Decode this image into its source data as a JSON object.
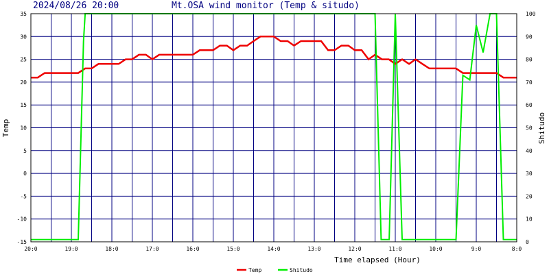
{
  "header": {
    "timestamp": "2024/08/26 20:00",
    "title": "Mt.OSA wind monitor (Temp & situdo)"
  },
  "chart_data": {
    "type": "line",
    "title": "Mt.OSA wind monitor (Temp & situdo)",
    "xlabel": "Time elapsed (Hour)",
    "ylabel_left": "Temp",
    "ylabel_right": "Shitudo",
    "ylim_left": [
      -15,
      35
    ],
    "ylim_right": [
      0,
      100
    ],
    "left_ticks": [
      35,
      30,
      25,
      20,
      15,
      10,
      5,
      0,
      -5,
      -10,
      -15
    ],
    "right_ticks": [
      100,
      90,
      80,
      70,
      60,
      50,
      40,
      30,
      20,
      10,
      0
    ],
    "x_tick_labels": [
      "20:0",
      "19:0",
      "18:0",
      "17:0",
      "16:0",
      "15:0",
      "14:0",
      "13:0",
      "12:0",
      "11:0",
      "10:0",
      "9:0",
      "8:0"
    ],
    "xlim_hours_elapsed": [
      0,
      12
    ],
    "grid": true,
    "legend_position": "bottom",
    "series": [
      {
        "name": "Temp",
        "axis": "left",
        "color": "#ee0000",
        "x": [
          0,
          0.17,
          0.34,
          0.5,
          0.67,
          0.84,
          1.0,
          1.17,
          1.34,
          1.5,
          1.67,
          1.84,
          2.0,
          2.17,
          2.34,
          2.5,
          2.67,
          2.84,
          3.0,
          3.17,
          3.34,
          3.5,
          3.67,
          3.84,
          4.0,
          4.17,
          4.34,
          4.5,
          4.67,
          4.84,
          5.0,
          5.17,
          5.34,
          5.5,
          5.67,
          5.84,
          6.0,
          6.17,
          6.34,
          6.5,
          6.67,
          6.84,
          7.0,
          7.17,
          7.34,
          7.5,
          7.67,
          7.84,
          8.0,
          8.17,
          8.34,
          8.5,
          8.67,
          8.84,
          9.0,
          9.17,
          9.34,
          9.5,
          9.67,
          9.84,
          10.0,
          10.17,
          10.34,
          10.5,
          10.67,
          10.84,
          11.0,
          11.17,
          11.34,
          11.5,
          11.67,
          11.84,
          12.0
        ],
        "values": [
          21,
          21,
          22,
          22,
          22,
          22,
          22,
          22,
          23,
          23,
          24,
          24,
          24,
          24,
          25,
          25,
          26,
          26,
          25,
          26,
          26,
          26,
          26,
          26,
          26,
          27,
          27,
          27,
          28,
          28,
          27,
          28,
          28,
          29,
          30,
          30,
          30,
          29,
          29,
          28,
          29,
          29,
          29,
          29,
          27,
          27,
          28,
          28,
          27,
          27,
          25,
          26,
          25,
          25,
          24,
          25,
          24,
          25,
          24,
          23,
          23,
          23,
          23,
          23,
          22,
          22,
          22,
          22,
          22,
          22,
          21,
          21,
          21
        ]
      },
      {
        "name": "Shitudo",
        "axis": "right",
        "color": "#00ee00",
        "x": [
          0,
          1.17,
          1.3,
          1.34,
          2.0,
          3.0,
          4.0,
          5.0,
          6.0,
          7.0,
          8.0,
          8.5,
          8.65,
          8.85,
          9.0,
          9.17,
          9.35,
          9.52,
          10.0,
          10.5,
          10.67,
          10.84,
          11.0,
          11.17,
          11.34,
          11.5,
          11.67,
          11.84,
          12.0
        ],
        "values": [
          1,
          1,
          88,
          100,
          100,
          100,
          100,
          100,
          100,
          100,
          100,
          100,
          1,
          1,
          100,
          1,
          1,
          1,
          1,
          1,
          73,
          71,
          95,
          83,
          100,
          100,
          1,
          1,
          1
        ]
      }
    ]
  }
}
